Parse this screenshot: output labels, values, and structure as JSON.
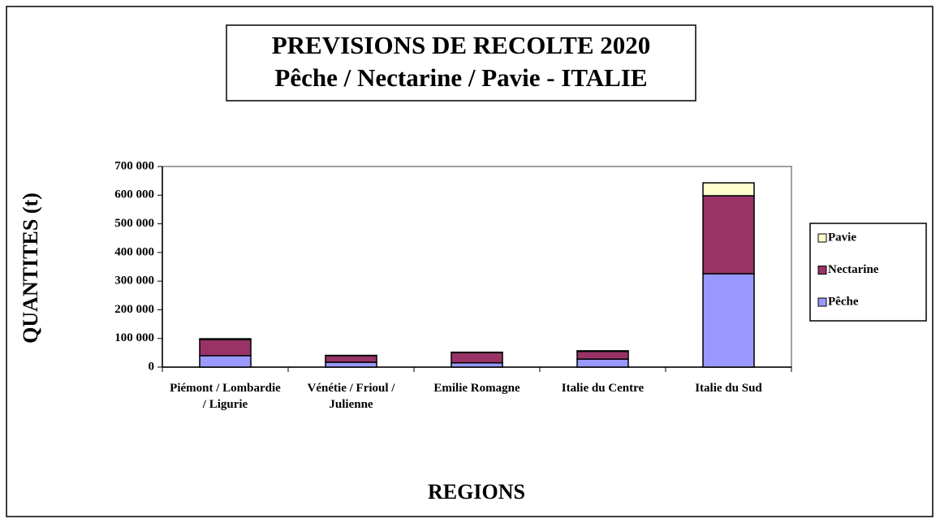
{
  "chart_data": {
    "type": "bar",
    "stacked": true,
    "title": "PREVISIONS DE RECOLTE 2020",
    "subtitle": "Pêche / Nectarine / Pavie - ITALIE",
    "x_label": "REGIONS",
    "y_label": "QUANTITES (t)",
    "categories": [
      "Piémont / Lombardie / Ligurie",
      "Vénétie / Frioul / Julienne",
      "Emilie Romagne",
      "Italie du Centre",
      "Italie du Sud"
    ],
    "series": [
      {
        "name": "Pêche",
        "color": "#9999ff",
        "values": [
          40000,
          17000,
          15000,
          28000,
          326000
        ]
      },
      {
        "name": "Nectarine",
        "color": "#993366",
        "values": [
          56000,
          23000,
          36000,
          27000,
          272000
        ]
      },
      {
        "name": "Pavie",
        "color": "#ffffcc",
        "values": [
          3000,
          1000,
          1000,
          2000,
          45000
        ]
      }
    ],
    "ylim": [
      0,
      700000
    ],
    "yticks": [
      {
        "value": 0,
        "label": "0"
      },
      {
        "value": 100000,
        "label": "100 000"
      },
      {
        "value": 200000,
        "label": "200 000"
      },
      {
        "value": 300000,
        "label": "300 000"
      },
      {
        "value": 400000,
        "label": "400 000"
      },
      {
        "value": 500000,
        "label": "500 000"
      },
      {
        "value": 600000,
        "label": "600 000"
      },
      {
        "value": 700000,
        "label": "700 000"
      }
    ],
    "legend": "right"
  }
}
